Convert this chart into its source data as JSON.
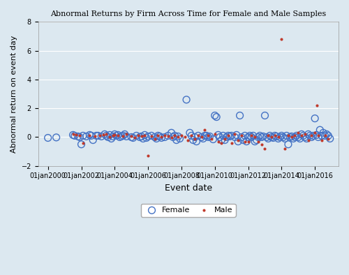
{
  "title": "Abnormal Returns by Firm Across Time for Female and Male Samples",
  "xlabel": "Event date",
  "ylabel": "Abnormal return on event day",
  "ylim": [
    -2,
    8
  ],
  "yticks": [
    -2,
    0,
    2,
    4,
    6,
    8
  ],
  "bg_color": "#dce8f0",
  "plot_bg": "#dce8f0",
  "female_color": "#4472C4",
  "male_color": "#C0392B",
  "female_marker": "o",
  "male_marker": "s",
  "female_size": 50,
  "male_size": 15,
  "female_alpha": 0.7,
  "male_alpha": 0.9,
  "seed": 42,
  "female_points": [
    [
      2000.0,
      -0.05
    ],
    [
      2000.5,
      -0.02
    ],
    [
      2001.5,
      0.15
    ],
    [
      2001.6,
      0.1
    ],
    [
      2001.8,
      0.05
    ],
    [
      2001.9,
      0.0
    ],
    [
      2002.0,
      -0.5
    ],
    [
      2002.1,
      0.1
    ],
    [
      2002.3,
      0.05
    ],
    [
      2002.5,
      0.15
    ],
    [
      2002.6,
      0.1
    ],
    [
      2002.7,
      -0.2
    ],
    [
      2002.9,
      0.1
    ],
    [
      2003.0,
      0.1
    ],
    [
      2003.2,
      0.05
    ],
    [
      2003.4,
      0.2
    ],
    [
      2003.5,
      0.1
    ],
    [
      2003.6,
      0.0
    ],
    [
      2003.7,
      0.15
    ],
    [
      2003.8,
      -0.1
    ],
    [
      2003.9,
      0.05
    ],
    [
      2004.0,
      0.2
    ],
    [
      2004.1,
      0.1
    ],
    [
      2004.2,
      0.15
    ],
    [
      2004.3,
      0.0
    ],
    [
      2004.4,
      0.05
    ],
    [
      2004.5,
      0.1
    ],
    [
      2004.6,
      0.2
    ],
    [
      2004.7,
      0.05
    ],
    [
      2005.0,
      0.0
    ],
    [
      2005.1,
      -0.05
    ],
    [
      2005.3,
      0.1
    ],
    [
      2005.5,
      0.0
    ],
    [
      2005.6,
      0.05
    ],
    [
      2005.7,
      -0.1
    ],
    [
      2005.8,
      0.15
    ],
    [
      2005.9,
      -0.05
    ],
    [
      2006.0,
      0.05
    ],
    [
      2006.2,
      0.1
    ],
    [
      2006.4,
      0.0
    ],
    [
      2006.5,
      -0.1
    ],
    [
      2006.6,
      0.1
    ],
    [
      2006.7,
      0.05
    ],
    [
      2006.8,
      -0.05
    ],
    [
      2007.0,
      0.0
    ],
    [
      2007.2,
      0.1
    ],
    [
      2007.4,
      0.3
    ],
    [
      2007.5,
      0.0
    ],
    [
      2007.6,
      0.1
    ],
    [
      2007.7,
      -0.2
    ],
    [
      2007.8,
      0.05
    ],
    [
      2007.9,
      -0.1
    ],
    [
      2008.3,
      2.6
    ],
    [
      2008.5,
      0.3
    ],
    [
      2008.6,
      0.1
    ],
    [
      2008.7,
      -0.2
    ],
    [
      2008.8,
      0.0
    ],
    [
      2008.9,
      -0.3
    ],
    [
      2009.0,
      0.1
    ],
    [
      2009.2,
      0.0
    ],
    [
      2009.3,
      -0.1
    ],
    [
      2009.4,
      0.1
    ],
    [
      2009.5,
      0.1
    ],
    [
      2009.6,
      0.0
    ],
    [
      2009.7,
      0.05
    ],
    [
      2009.9,
      -0.15
    ],
    [
      2010.0,
      1.5
    ],
    [
      2010.1,
      1.4
    ],
    [
      2010.2,
      0.15
    ],
    [
      2010.3,
      0.0
    ],
    [
      2010.4,
      -0.2
    ],
    [
      2010.5,
      0.1
    ],
    [
      2010.6,
      -0.2
    ],
    [
      2010.7,
      0.0
    ],
    [
      2010.8,
      0.1
    ],
    [
      2010.9,
      0.05
    ],
    [
      2011.0,
      0.1
    ],
    [
      2011.2,
      0.0
    ],
    [
      2011.3,
      0.15
    ],
    [
      2011.4,
      -0.3
    ],
    [
      2011.5,
      1.5
    ],
    [
      2011.6,
      0.0
    ],
    [
      2011.7,
      -0.2
    ],
    [
      2011.8,
      0.1
    ],
    [
      2011.9,
      -0.3
    ],
    [
      2012.0,
      0.0
    ],
    [
      2012.1,
      0.1
    ],
    [
      2012.2,
      0.0
    ],
    [
      2012.3,
      0.1
    ],
    [
      2012.4,
      -0.3
    ],
    [
      2012.5,
      -0.2
    ],
    [
      2012.6,
      0.0
    ],
    [
      2012.7,
      0.1
    ],
    [
      2012.8,
      0.0
    ],
    [
      2012.9,
      0.05
    ],
    [
      2013.0,
      1.5
    ],
    [
      2013.1,
      0.0
    ],
    [
      2013.2,
      -0.1
    ],
    [
      2013.3,
      0.1
    ],
    [
      2013.4,
      0.0
    ],
    [
      2013.5,
      -0.05
    ],
    [
      2013.6,
      0.1
    ],
    [
      2013.7,
      0.05
    ],
    [
      2013.8,
      -0.1
    ],
    [
      2013.9,
      0.0
    ],
    [
      2014.0,
      0.1
    ],
    [
      2014.1,
      0.0
    ],
    [
      2014.2,
      -0.1
    ],
    [
      2014.3,
      0.1
    ],
    [
      2014.4,
      -0.5
    ],
    [
      2014.5,
      0.0
    ],
    [
      2014.6,
      0.05
    ],
    [
      2014.7,
      -0.1
    ],
    [
      2014.8,
      0.0
    ],
    [
      2014.9,
      0.1
    ],
    [
      2015.0,
      0.0
    ],
    [
      2015.1,
      -0.1
    ],
    [
      2015.2,
      0.2
    ],
    [
      2015.3,
      0.1
    ],
    [
      2015.4,
      0.0
    ],
    [
      2015.5,
      -0.1
    ],
    [
      2015.6,
      0.2
    ],
    [
      2015.7,
      0.1
    ],
    [
      2015.8,
      0.0
    ],
    [
      2015.9,
      0.1
    ],
    [
      2016.0,
      1.3
    ],
    [
      2016.1,
      0.15
    ],
    [
      2016.2,
      0.0
    ],
    [
      2016.3,
      0.5
    ],
    [
      2016.4,
      0.1
    ],
    [
      2016.5,
      0.3
    ],
    [
      2016.6,
      0.1
    ],
    [
      2016.7,
      0.2
    ],
    [
      2016.8,
      0.1
    ],
    [
      2016.9,
      -0.1
    ]
  ],
  "male_points": [
    [
      2001.5,
      0.2
    ],
    [
      2001.7,
      0.15
    ],
    [
      2001.9,
      0.1
    ],
    [
      2002.1,
      -0.4
    ],
    [
      2002.5,
      0.1
    ],
    [
      2002.8,
      0.05
    ],
    [
      2003.1,
      0.1
    ],
    [
      2003.3,
      0.15
    ],
    [
      2003.5,
      0.2
    ],
    [
      2003.7,
      0.0
    ],
    [
      2003.9,
      0.1
    ],
    [
      2004.0,
      0.15
    ],
    [
      2004.2,
      0.1
    ],
    [
      2004.5,
      0.05
    ],
    [
      2004.7,
      0.2
    ],
    [
      2005.0,
      0.05
    ],
    [
      2005.2,
      -0.05
    ],
    [
      2005.4,
      0.1
    ],
    [
      2005.6,
      0.05
    ],
    [
      2005.8,
      0.1
    ],
    [
      2006.0,
      -1.3
    ],
    [
      2006.2,
      0.05
    ],
    [
      2006.4,
      -0.1
    ],
    [
      2006.6,
      0.1
    ],
    [
      2006.8,
      0.0
    ],
    [
      2007.0,
      0.1
    ],
    [
      2007.2,
      0.05
    ],
    [
      2007.4,
      -0.05
    ],
    [
      2007.6,
      0.1
    ],
    [
      2007.8,
      0.0
    ],
    [
      2008.0,
      0.1
    ],
    [
      2008.2,
      0.0
    ],
    [
      2008.4,
      -0.2
    ],
    [
      2008.6,
      0.1
    ],
    [
      2008.8,
      -0.1
    ],
    [
      2009.0,
      0.1
    ],
    [
      2009.2,
      0.0
    ],
    [
      2009.4,
      0.5
    ],
    [
      2009.6,
      0.1
    ],
    [
      2009.8,
      -0.1
    ],
    [
      2010.0,
      0.2
    ],
    [
      2010.2,
      -0.3
    ],
    [
      2010.4,
      -0.4
    ],
    [
      2010.6,
      -0.1
    ],
    [
      2010.8,
      0.1
    ],
    [
      2011.0,
      -0.4
    ],
    [
      2011.2,
      0.2
    ],
    [
      2011.4,
      -0.2
    ],
    [
      2011.6,
      0.1
    ],
    [
      2011.8,
      -0.3
    ],
    [
      2012.0,
      -0.3
    ],
    [
      2012.2,
      0.1
    ],
    [
      2012.4,
      0.0
    ],
    [
      2012.6,
      -0.3
    ],
    [
      2012.8,
      -0.5
    ],
    [
      2013.0,
      -0.8
    ],
    [
      2013.2,
      0.1
    ],
    [
      2013.4,
      0.0
    ],
    [
      2013.6,
      0.1
    ],
    [
      2013.8,
      0.0
    ],
    [
      2014.0,
      6.8
    ],
    [
      2014.2,
      -0.8
    ],
    [
      2014.4,
      0.1
    ],
    [
      2014.6,
      0.0
    ],
    [
      2014.8,
      0.1
    ],
    [
      2015.0,
      0.3
    ],
    [
      2015.2,
      0.1
    ],
    [
      2015.4,
      0.2
    ],
    [
      2015.6,
      -0.2
    ],
    [
      2015.8,
      0.1
    ],
    [
      2016.0,
      0.3
    ],
    [
      2016.1,
      2.2
    ],
    [
      2016.2,
      0.1
    ],
    [
      2016.4,
      -0.2
    ],
    [
      2016.6,
      0.1
    ],
    [
      2016.8,
      -0.1
    ]
  ]
}
